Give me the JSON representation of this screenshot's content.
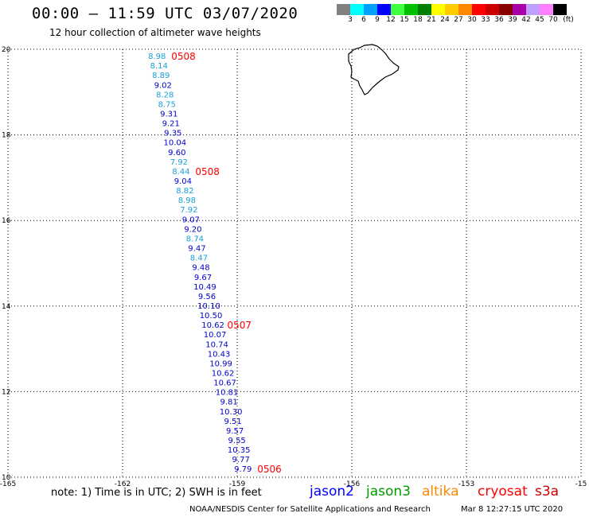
{
  "header": {
    "title": "00:00 – 11:59 UTC 03/07/2020",
    "subtitle": "12 hour collection of altimeter wave heights"
  },
  "legend": {
    "unit": "(ft)",
    "bins": [
      {
        "label": "3",
        "color": "#808080"
      },
      {
        "label": "6",
        "color": "#00ffff"
      },
      {
        "label": "9",
        "color": "#00a0ff"
      },
      {
        "label": "12",
        "color": "#0000ff"
      },
      {
        "label": "15",
        "color": "#40ff40"
      },
      {
        "label": "18",
        "color": "#00c000"
      },
      {
        "label": "21",
        "color": "#008000"
      },
      {
        "label": "24",
        "color": "#ffff00"
      },
      {
        "label": "27",
        "color": "#ffcc00"
      },
      {
        "label": "30",
        "color": "#ff8800"
      },
      {
        "label": "33",
        "color": "#ff0000"
      },
      {
        "label": "36",
        "color": "#cc0000"
      },
      {
        "label": "39",
        "color": "#880000"
      },
      {
        "label": "42",
        "color": "#aa00aa"
      },
      {
        "label": "45",
        "color": "#c0a0ff"
      },
      {
        "label": "70",
        "color": "#ff80ff"
      },
      {
        "label": "",
        "color": "#000000"
      }
    ]
  },
  "axes": {
    "lon_ticks": [
      "-165",
      "-162",
      "-159",
      "-156",
      "-153",
      "-15"
    ],
    "lat_ticks": [
      "20",
      "18",
      "16",
      "14",
      "12",
      "10"
    ]
  },
  "colors": {
    "light": "#1aa0d8",
    "dark": "#0000cc",
    "time": "#ff0000"
  },
  "track": {
    "start": {
      "lon": -161.1,
      "lat": 19.85
    },
    "end": {
      "lon": -158.85,
      "lat": 10.2
    },
    "values": [
      {
        "v": "8.98",
        "c": "light"
      },
      {
        "v": "8.14",
        "c": "light"
      },
      {
        "v": "8.89",
        "c": "light"
      },
      {
        "v": "9.02",
        "c": "dark"
      },
      {
        "v": "8.28",
        "c": "light"
      },
      {
        "v": "8.75",
        "c": "light"
      },
      {
        "v": "9.31",
        "c": "dark"
      },
      {
        "v": "9.21",
        "c": "dark"
      },
      {
        "v": "9.35",
        "c": "dark"
      },
      {
        "v": "10.04",
        "c": "dark"
      },
      {
        "v": "9.60",
        "c": "dark"
      },
      {
        "v": "7.92",
        "c": "light"
      },
      {
        "v": "8.44",
        "c": "light"
      },
      {
        "v": "9.04",
        "c": "dark"
      },
      {
        "v": "8.82",
        "c": "light"
      },
      {
        "v": "8.98",
        "c": "light"
      },
      {
        "v": "7.92",
        "c": "light"
      },
      {
        "v": "9.07",
        "c": "dark"
      },
      {
        "v": "9.20",
        "c": "dark"
      },
      {
        "v": "8.74",
        "c": "light"
      },
      {
        "v": "9.47",
        "c": "dark"
      },
      {
        "v": "8.47",
        "c": "light"
      },
      {
        "v": "9.48",
        "c": "dark"
      },
      {
        "v": "9.67",
        "c": "dark"
      },
      {
        "v": "10.49",
        "c": "dark"
      },
      {
        "v": "9.56",
        "c": "dark"
      },
      {
        "v": "10.10",
        "c": "dark"
      },
      {
        "v": "10.50",
        "c": "dark"
      },
      {
        "v": "10.62",
        "c": "dark"
      },
      {
        "v": "10.07",
        "c": "dark"
      },
      {
        "v": "10.74",
        "c": "dark"
      },
      {
        "v": "10.43",
        "c": "dark"
      },
      {
        "v": "10.99",
        "c": "dark"
      },
      {
        "v": "10.62",
        "c": "dark"
      },
      {
        "v": "10.67",
        "c": "dark"
      },
      {
        "v": "10.81",
        "c": "dark"
      },
      {
        "v": "9.81",
        "c": "dark"
      },
      {
        "v": "10.30",
        "c": "dark"
      },
      {
        "v": "9.51",
        "c": "dark"
      },
      {
        "v": "9.57",
        "c": "dark"
      },
      {
        "v": "9.55",
        "c": "dark"
      },
      {
        "v": "10.35",
        "c": "dark"
      },
      {
        "v": "9.77",
        "c": "dark"
      },
      {
        "v": "9.79",
        "c": "dark"
      }
    ],
    "time_labels": [
      {
        "text": "0508",
        "index": 0
      },
      {
        "text": "0508",
        "index": 12
      },
      {
        "text": "0507",
        "index": 28
      },
      {
        "text": "0506",
        "index": 43
      }
    ]
  },
  "footer": {
    "note": "note: 1) Time is in UTC; 2) SWH is in feet",
    "satellites": [
      {
        "name": "jason2",
        "color": "#0000ff"
      },
      {
        "name": "jason3",
        "color": "#009900"
      },
      {
        "name": "altika",
        "color": "#ff8800"
      },
      {
        "name": "cryosat",
        "color": "#ff0000"
      },
      {
        "name": "s3a",
        "color": "#cc0000"
      }
    ],
    "credit": "NOAA/NESDIS Center for Satellite Applications and Research",
    "timestamp": "Mar  8 12:27:15 UTC 2020"
  }
}
